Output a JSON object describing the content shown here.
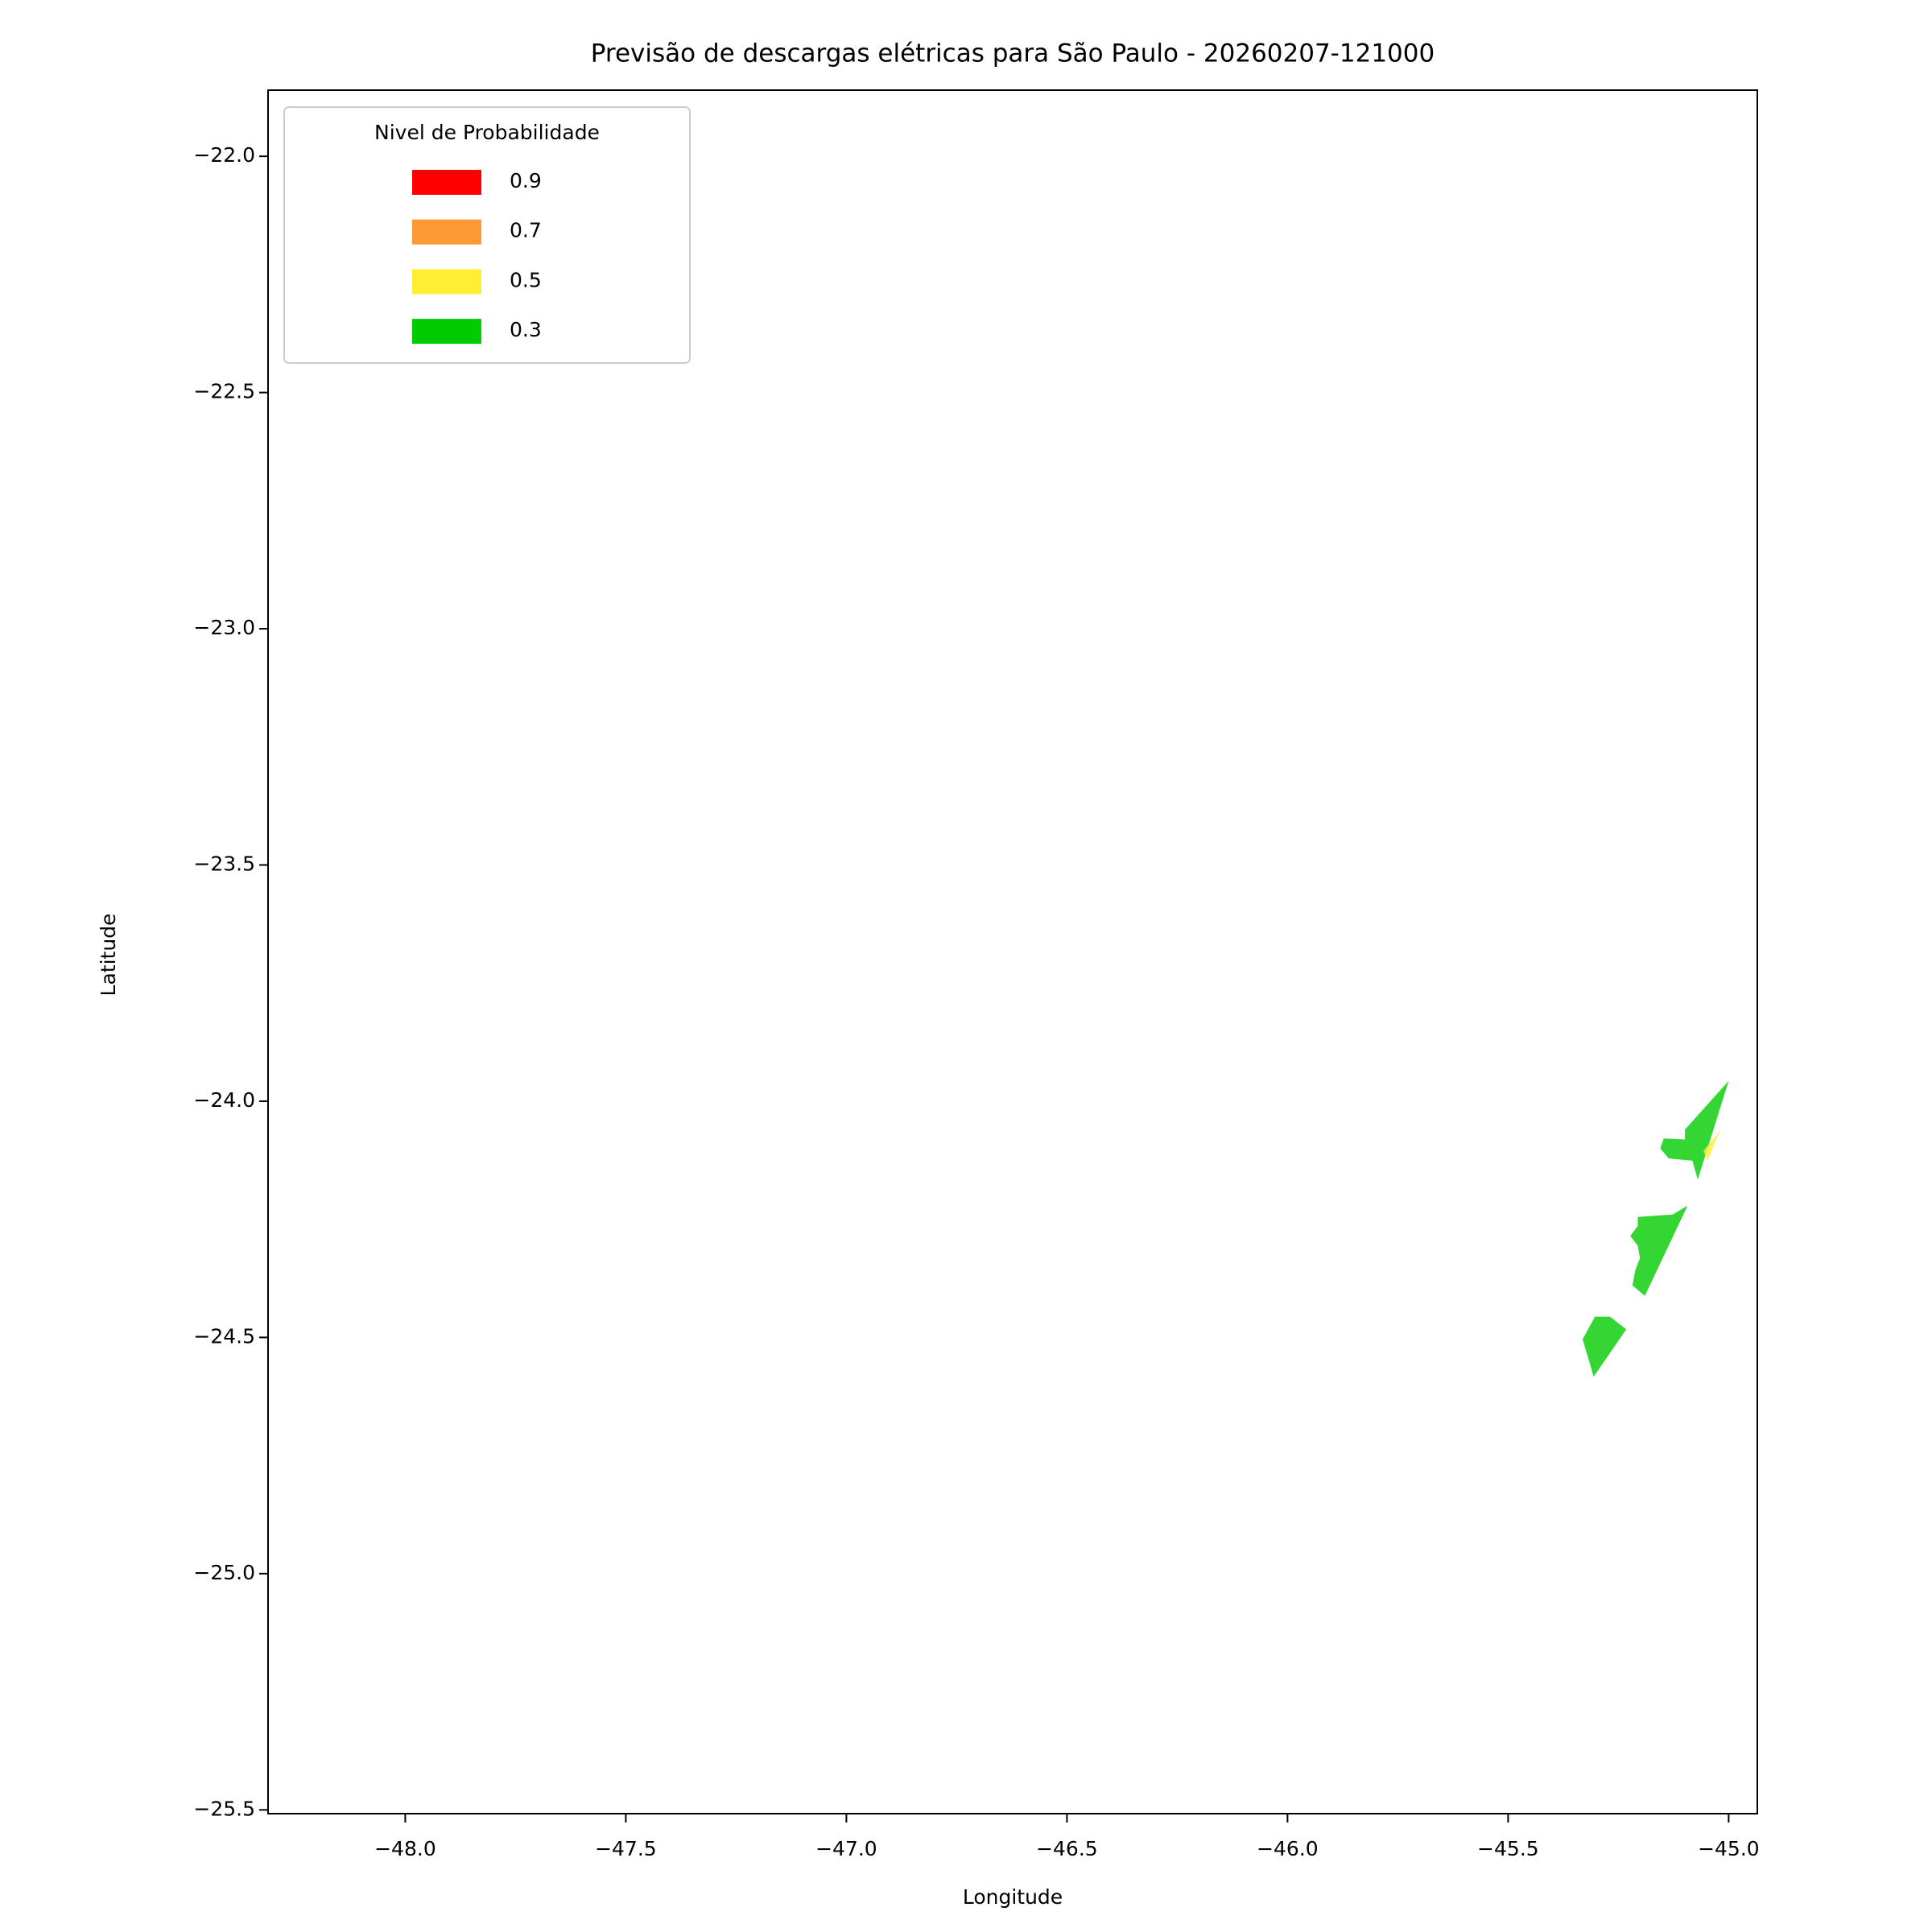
{
  "chart_data": {
    "type": "contour",
    "title": "Previsão de descargas elétricas para São Paulo - 20260207-121000",
    "x_label": "Longitude",
    "y_label": "Latitude",
    "xlim": [
      -48.311,
      -44.935
    ],
    "ylim": [
      -25.508,
      -21.86
    ],
    "xticks": [
      {
        "value": -48,
        "label": "−48.0"
      },
      {
        "value": -47.5,
        "label": "−47.5"
      },
      {
        "value": -47,
        "label": "−47.0"
      },
      {
        "value": -46.5,
        "label": "−46.5"
      },
      {
        "value": -46,
        "label": "−46.0"
      },
      {
        "value": -45.5,
        "label": "−45.5"
      },
      {
        "value": -45,
        "label": "−45.0"
      }
    ],
    "yticks": [
      {
        "value": -22,
        "label": "−22.0"
      },
      {
        "value": -22.5,
        "label": "−22.5"
      },
      {
        "value": -23,
        "label": "−23.0"
      },
      {
        "value": -23.5,
        "label": "−23.5"
      },
      {
        "value": -24,
        "label": "−24.0"
      },
      {
        "value": -24.5,
        "label": "−24.5"
      },
      {
        "value": -25,
        "label": "−25.0"
      },
      {
        "value": -25.5,
        "label": "−25.5"
      }
    ],
    "legend_title": "Nivel de Probabilidade",
    "legend_position": "upper left",
    "series": [
      {
        "name": "0.9",
        "color": "#ff0000",
        "polygons": []
      },
      {
        "name": "0.7",
        "color": "#ff9933",
        "polygons": []
      },
      {
        "name": "0.5",
        "color": "#ffee33",
        "polygons": [
          {
            "x": [
              -45.057,
              -45.02,
              -45.048
            ],
            "y": [
              -24.105,
              -24.063,
              -24.126
            ]
          }
        ]
      },
      {
        "name": "0.3",
        "color": "#00cc00",
        "polygons": [
          {
            "x": [
              -45.0,
              -45.07,
              -45.082,
              -45.136,
              -45.155,
              -45.147,
              -45.099,
              -45.099
            ],
            "y": [
              -23.957,
              -24.166,
              -24.126,
              -24.121,
              -24.1,
              -24.079,
              -24.081,
              -24.06
            ]
          },
          {
            "x": [
              -45.206,
              -45.161,
              -45.127,
              -45.093,
              -45.19,
              -45.218,
              -45.212,
              -45.201,
              -45.206,
              -45.223,
              -45.206
            ],
            "y": [
              -24.245,
              -24.242,
              -24.24,
              -24.221,
              -24.412,
              -24.39,
              -24.359,
              -24.332,
              -24.306,
              -24.285,
              -24.264
            ]
          },
          {
            "x": [
              -45.303,
              -45.269,
              -45.232,
              -45.306,
              -45.331
            ],
            "y": [
              -24.456,
              -24.456,
              -24.483,
              -24.583,
              -24.504
            ]
          }
        ]
      }
    ]
  }
}
